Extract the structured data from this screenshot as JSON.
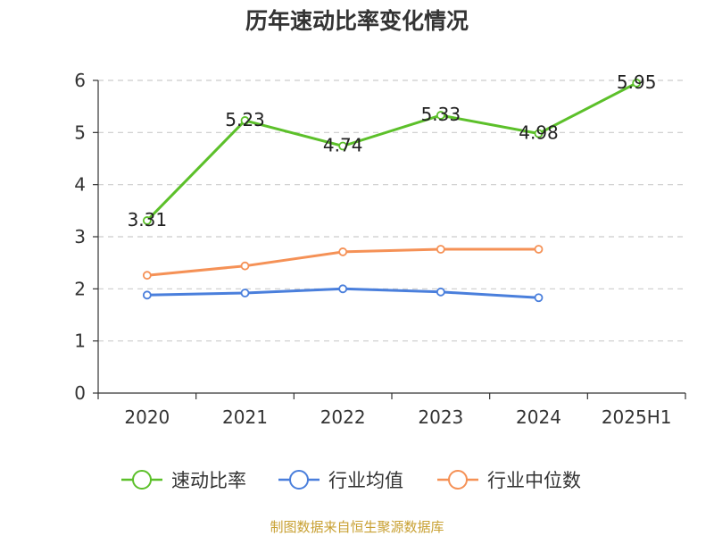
{
  "chart_data": {
    "type": "line",
    "title": "历年速动比率变化情况",
    "categories": [
      "2020",
      "2021",
      "2022",
      "2023",
      "2024",
      "2025H1"
    ],
    "ylim": [
      0,
      6
    ],
    "yticks": [
      0,
      1,
      2,
      3,
      4,
      5,
      6
    ],
    "grid": true,
    "legend_position": "bottom",
    "series": [
      {
        "name": "速动比率",
        "color": "#5cc02a",
        "values": [
          3.31,
          5.23,
          4.74,
          5.33,
          4.98,
          5.95
        ],
        "labels": [
          "3.31",
          "5.23",
          "4.74",
          "5.33",
          "4.98",
          "5.95"
        ]
      },
      {
        "name": "行业均值",
        "color": "#4a7fdc",
        "values": [
          1.88,
          1.92,
          2.0,
          1.94,
          1.83,
          null
        ]
      },
      {
        "name": "行业中位数",
        "color": "#f59156",
        "values": [
          2.26,
          2.44,
          2.71,
          2.76,
          2.76,
          null
        ]
      }
    ]
  },
  "footer": {
    "source": "制图数据来自恒生聚源数据库"
  }
}
